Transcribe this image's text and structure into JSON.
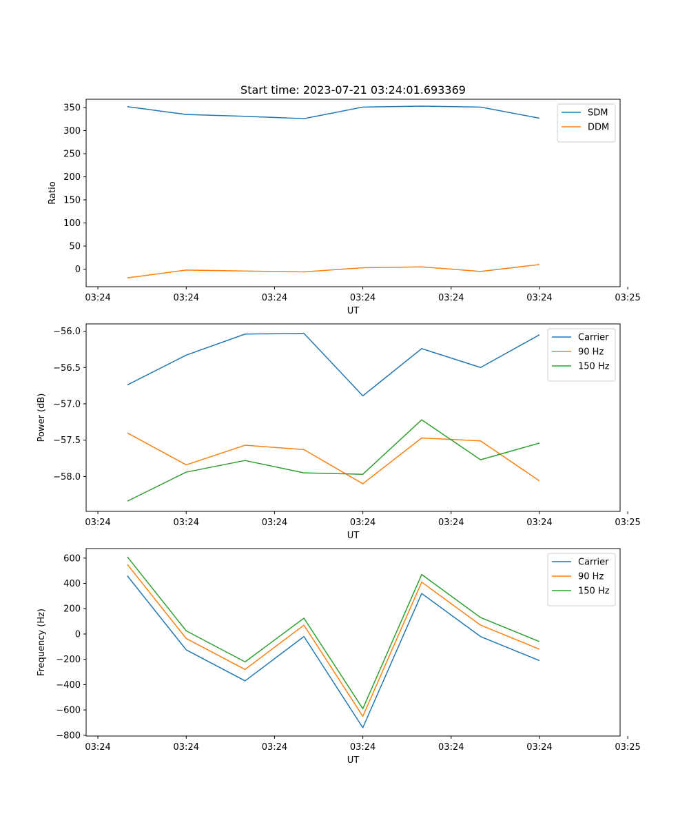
{
  "figure": {
    "title": "Start time: 2023-07-21 03:24:01.693369"
  },
  "chart_data": [
    {
      "type": "line",
      "title": "Start time: 2023-07-21 03:24:01.693369",
      "xlabel": "UT",
      "ylabel": "Ratio",
      "x": [
        1,
        2,
        3,
        4,
        5,
        6,
        7,
        8
      ],
      "xlim": [
        0.3,
        9.37
      ],
      "x_ticks": [
        0.5,
        2.0,
        3.5,
        5.0,
        6.5,
        8.0,
        9.5
      ],
      "x_tick_labels": [
        "03:24",
        "03:24",
        "03:24",
        "03:24",
        "03:24",
        "03:24",
        "03:25"
      ],
      "ylim": [
        -38,
        368
      ],
      "y_ticks": [
        0,
        50,
        100,
        150,
        200,
        250,
        300,
        350
      ],
      "y_tick_labels": [
        "0",
        "50",
        "100",
        "150",
        "200",
        "250",
        "300",
        "350"
      ],
      "legend": "top-right",
      "series": [
        {
          "name": "SDM",
          "color": "#1f77b4",
          "values": [
            352,
            335,
            331,
            326,
            351,
            353,
            351,
            327
          ]
        },
        {
          "name": "DDM",
          "color": "#ff7f0e",
          "values": [
            -19,
            -2,
            -4,
            -6,
            3,
            5,
            -5,
            10
          ]
        }
      ]
    },
    {
      "type": "line",
      "title": "",
      "xlabel": "UT",
      "ylabel": "Power (dB)",
      "x": [
        1,
        2,
        3,
        4,
        5,
        6,
        7,
        8
      ],
      "xlim": [
        0.3,
        9.37
      ],
      "x_ticks": [
        0.5,
        2.0,
        3.5,
        5.0,
        6.5,
        8.0,
        9.5
      ],
      "x_tick_labels": [
        "03:24",
        "03:24",
        "03:24",
        "03:24",
        "03:24",
        "03:24",
        "03:25"
      ],
      "ylim": [
        -58.48,
        -55.9
      ],
      "y_ticks": [
        -58.0,
        -57.5,
        -57.0,
        -56.5,
        -56.0
      ],
      "y_tick_labels": [
        "−58.0",
        "−57.5",
        "−57.0",
        "−56.5",
        "−56.0"
      ],
      "legend": "top-right",
      "series": [
        {
          "name": "Carrier",
          "color": "#1f77b4",
          "values": [
            -56.74,
            -56.33,
            -56.04,
            -56.03,
            -56.89,
            -56.24,
            -56.5,
            -56.05
          ]
        },
        {
          "name": "90 Hz",
          "color": "#ff7f0e",
          "values": [
            -57.4,
            -57.84,
            -57.57,
            -57.63,
            -58.1,
            -57.47,
            -57.51,
            -58.06
          ]
        },
        {
          "name": "150 Hz",
          "color": "#2ca02c",
          "values": [
            -58.34,
            -57.94,
            -57.78,
            -57.95,
            -57.97,
            -57.22,
            -57.77,
            -57.54
          ]
        }
      ]
    },
    {
      "type": "line",
      "title": "",
      "xlabel": "UT",
      "ylabel": "Frequency (Hz)",
      "x": [
        1,
        2,
        3,
        4,
        5,
        6,
        7,
        8
      ],
      "xlim": [
        0.3,
        9.37
      ],
      "x_ticks": [
        0.5,
        2.0,
        3.5,
        5.0,
        6.5,
        8.0,
        9.5
      ],
      "x_tick_labels": [
        "03:24",
        "03:24",
        "03:24",
        "03:24",
        "03:24",
        "03:24",
        "03:25"
      ],
      "ylim": [
        -806,
        675
      ],
      "y_ticks": [
        -800,
        -600,
        -400,
        -200,
        0,
        200,
        400,
        600
      ],
      "y_tick_labels": [
        "−800",
        "−600",
        "−400",
        "−200",
        "0",
        "200",
        "400",
        "600"
      ],
      "legend": "top-right",
      "series": [
        {
          "name": "Carrier",
          "color": "#1f77b4",
          "values": [
            460,
            -125,
            -370,
            -20,
            -740,
            320,
            -20,
            -210
          ]
        },
        {
          "name": "90 Hz",
          "color": "#ff7f0e",
          "values": [
            550,
            -35,
            -280,
            70,
            -650,
            410,
            70,
            -120
          ]
        },
        {
          "name": "150 Hz",
          "color": "#2ca02c",
          "values": [
            610,
            25,
            -220,
            125,
            -590,
            470,
            130,
            -60
          ]
        }
      ]
    }
  ]
}
